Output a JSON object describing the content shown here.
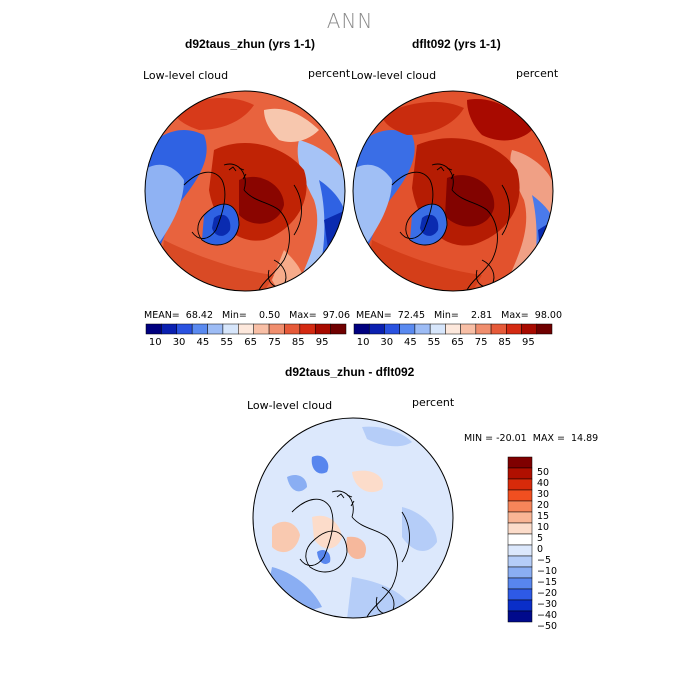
{
  "season": "ANN",
  "panels": [
    {
      "title": "d92taus_zhun (yrs 1-1)",
      "variable": "Low-level cloud",
      "units": "percent",
      "stats": "MEAN=  68.42   Min=    0.50   Max=  97.06"
    },
    {
      "title": "dflt092 (yrs 1-1)",
      "variable": "Low-level cloud",
      "units": "percent",
      "stats": "MEAN=  72.45   Min=    2.81   Max=  98.00"
    }
  ],
  "top_colorbar": {
    "colors": [
      "#00007f",
      "#0a20b0",
      "#2a52e0",
      "#5a8af0",
      "#9dbcf5",
      "#d7e6fb",
      "#fde8dc",
      "#f8bfa6",
      "#f08e6e",
      "#e65a39",
      "#d42a12",
      "#a80a00",
      "#6f0000"
    ],
    "tick_labels": [
      "10",
      "30",
      "45",
      "55",
      "65",
      "75",
      "85",
      "95"
    ]
  },
  "diff_panel": {
    "title": "d92taus_zhun - dflt092",
    "variable": "Low-level cloud",
    "units": "percent",
    "stats": "MIN = -20.01  MAX =  14.89",
    "colorbar": {
      "colors": [
        "#7f0000",
        "#b00f00",
        "#d82a0a",
        "#f04f20",
        "#f6855a",
        "#f9b595",
        "#fcdcca",
        "#ffffff",
        "#dce8fc",
        "#b5cdf8",
        "#8aaef3",
        "#5886ee",
        "#2e5ae6",
        "#0a2ec8",
        "#000a8c"
      ],
      "tick_labels": [
        "50",
        "40",
        "30",
        "20",
        "15",
        "10",
        "5",
        "0",
        "−5",
        "−10",
        "−15",
        "−20",
        "−30",
        "−40",
        "−50"
      ]
    }
  }
}
